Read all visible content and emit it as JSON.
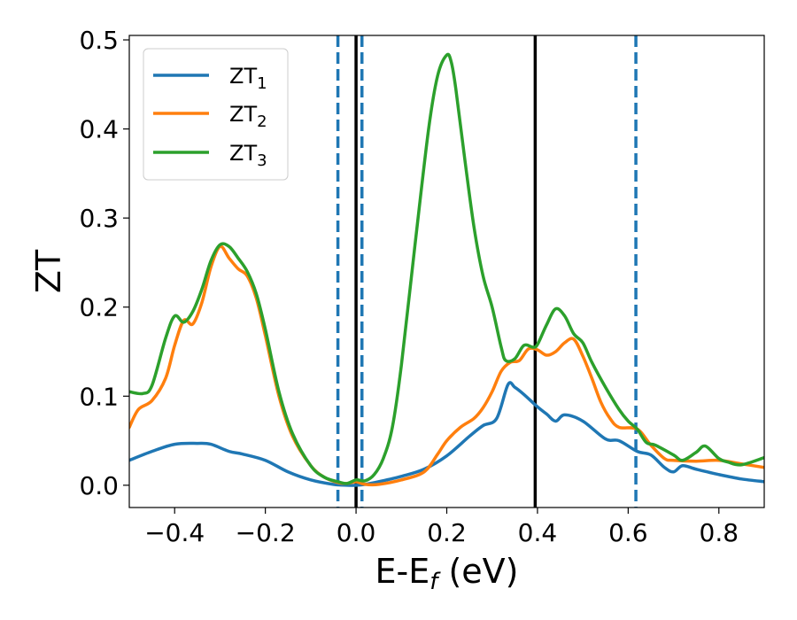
{
  "chart_data": {
    "type": "line",
    "xlabel": "E-E",
    "xlabel_sub": "f",
    "xlabel_unit": " (eV)",
    "ylabel": "ZT",
    "xlim": [
      -0.5,
      0.9
    ],
    "ylim": [
      -0.025,
      0.505
    ],
    "xticks": [
      -0.4,
      -0.2,
      0.0,
      0.2,
      0.4,
      0.6,
      0.8
    ],
    "xtick_labels": [
      "−0.4",
      "−0.2",
      "0.0",
      "0.2",
      "0.4",
      "0.6",
      "0.8"
    ],
    "yticks": [
      0.0,
      0.1,
      0.2,
      0.3,
      0.4,
      0.5
    ],
    "ytick_labels": [
      "0.0",
      "0.1",
      "0.2",
      "0.3",
      "0.4",
      "0.5"
    ],
    "grid": false,
    "legend_position": "top-left",
    "vlines_solid": [
      0.0,
      0.395
    ],
    "vlines_dashed": [
      -0.04,
      0.013,
      0.617
    ],
    "vline_solid_color": "#000000",
    "vline_dashed_color": "#1f77b4",
    "series": [
      {
        "name": "ZT",
        "sub": "1",
        "color": "#1f77b4",
        "x": [
          -0.5,
          -0.45,
          -0.4,
          -0.35,
          -0.32,
          -0.28,
          -0.25,
          -0.2,
          -0.15,
          -0.1,
          -0.05,
          -0.02,
          0.0,
          0.02,
          0.05,
          0.1,
          0.15,
          0.2,
          0.25,
          0.28,
          0.31,
          0.335,
          0.35,
          0.37,
          0.4,
          0.42,
          0.44,
          0.46,
          0.5,
          0.55,
          0.58,
          0.62,
          0.65,
          0.68,
          0.7,
          0.72,
          0.75,
          0.8,
          0.85,
          0.9
        ],
        "y": [
          0.028,
          0.038,
          0.046,
          0.047,
          0.046,
          0.038,
          0.035,
          0.028,
          0.015,
          0.006,
          0.001,
          0.0,
          0.0,
          0.001,
          0.004,
          0.01,
          0.018,
          0.033,
          0.055,
          0.067,
          0.075,
          0.113,
          0.11,
          0.102,
          0.088,
          0.08,
          0.072,
          0.079,
          0.072,
          0.052,
          0.05,
          0.038,
          0.034,
          0.02,
          0.015,
          0.022,
          0.018,
          0.012,
          0.007,
          0.004
        ]
      },
      {
        "name": "ZT",
        "sub": "2",
        "color": "#ff7f0e",
        "x": [
          -0.5,
          -0.48,
          -0.45,
          -0.42,
          -0.4,
          -0.38,
          -0.36,
          -0.34,
          -0.32,
          -0.3,
          -0.28,
          -0.26,
          -0.24,
          -0.22,
          -0.2,
          -0.17,
          -0.14,
          -0.1,
          -0.07,
          -0.04,
          -0.02,
          0.0,
          0.02,
          0.05,
          0.1,
          0.15,
          0.18,
          0.2,
          0.23,
          0.26,
          0.28,
          0.3,
          0.32,
          0.34,
          0.36,
          0.38,
          0.4,
          0.42,
          0.44,
          0.46,
          0.48,
          0.5,
          0.52,
          0.54,
          0.56,
          0.58,
          0.62,
          0.65,
          0.68,
          0.7,
          0.75,
          0.8,
          0.85,
          0.9
        ],
        "y": [
          0.065,
          0.085,
          0.095,
          0.12,
          0.157,
          0.185,
          0.181,
          0.205,
          0.245,
          0.268,
          0.255,
          0.243,
          0.235,
          0.21,
          0.168,
          0.1,
          0.055,
          0.022,
          0.009,
          0.003,
          0.002,
          0.004,
          0.001,
          0.001,
          0.006,
          0.015,
          0.035,
          0.05,
          0.065,
          0.075,
          0.087,
          0.105,
          0.128,
          0.138,
          0.14,
          0.153,
          0.152,
          0.146,
          0.15,
          0.16,
          0.164,
          0.145,
          0.12,
          0.093,
          0.075,
          0.065,
          0.063,
          0.045,
          0.03,
          0.028,
          0.027,
          0.028,
          0.024,
          0.02
        ]
      },
      {
        "name": "ZT",
        "sub": "3",
        "color": "#2ca02c",
        "x": [
          -0.5,
          -0.47,
          -0.45,
          -0.42,
          -0.4,
          -0.38,
          -0.36,
          -0.34,
          -0.32,
          -0.3,
          -0.28,
          -0.26,
          -0.24,
          -0.22,
          -0.2,
          -0.17,
          -0.14,
          -0.1,
          -0.07,
          -0.04,
          -0.02,
          0.0,
          0.02,
          0.04,
          0.06,
          0.08,
          0.1,
          0.13,
          0.16,
          0.18,
          0.2,
          0.21,
          0.22,
          0.24,
          0.26,
          0.28,
          0.3,
          0.32,
          0.33,
          0.35,
          0.37,
          0.39,
          0.4,
          0.42,
          0.44,
          0.46,
          0.48,
          0.5,
          0.52,
          0.55,
          0.58,
          0.6,
          0.62,
          0.64,
          0.66,
          0.7,
          0.72,
          0.75,
          0.77,
          0.8,
          0.82,
          0.85,
          0.9
        ],
        "y": [
          0.105,
          0.103,
          0.112,
          0.165,
          0.19,
          0.183,
          0.195,
          0.22,
          0.252,
          0.27,
          0.268,
          0.255,
          0.24,
          0.215,
          0.175,
          0.105,
          0.058,
          0.022,
          0.009,
          0.004,
          0.002,
          0.006,
          0.005,
          0.012,
          0.03,
          0.065,
          0.135,
          0.27,
          0.4,
          0.46,
          0.483,
          0.475,
          0.445,
          0.365,
          0.29,
          0.235,
          0.2,
          0.155,
          0.14,
          0.142,
          0.157,
          0.155,
          0.158,
          0.18,
          0.198,
          0.19,
          0.17,
          0.16,
          0.138,
          0.11,
          0.085,
          0.072,
          0.063,
          0.048,
          0.045,
          0.034,
          0.028,
          0.037,
          0.044,
          0.03,
          0.026,
          0.023,
          0.031
        ]
      }
    ]
  }
}
